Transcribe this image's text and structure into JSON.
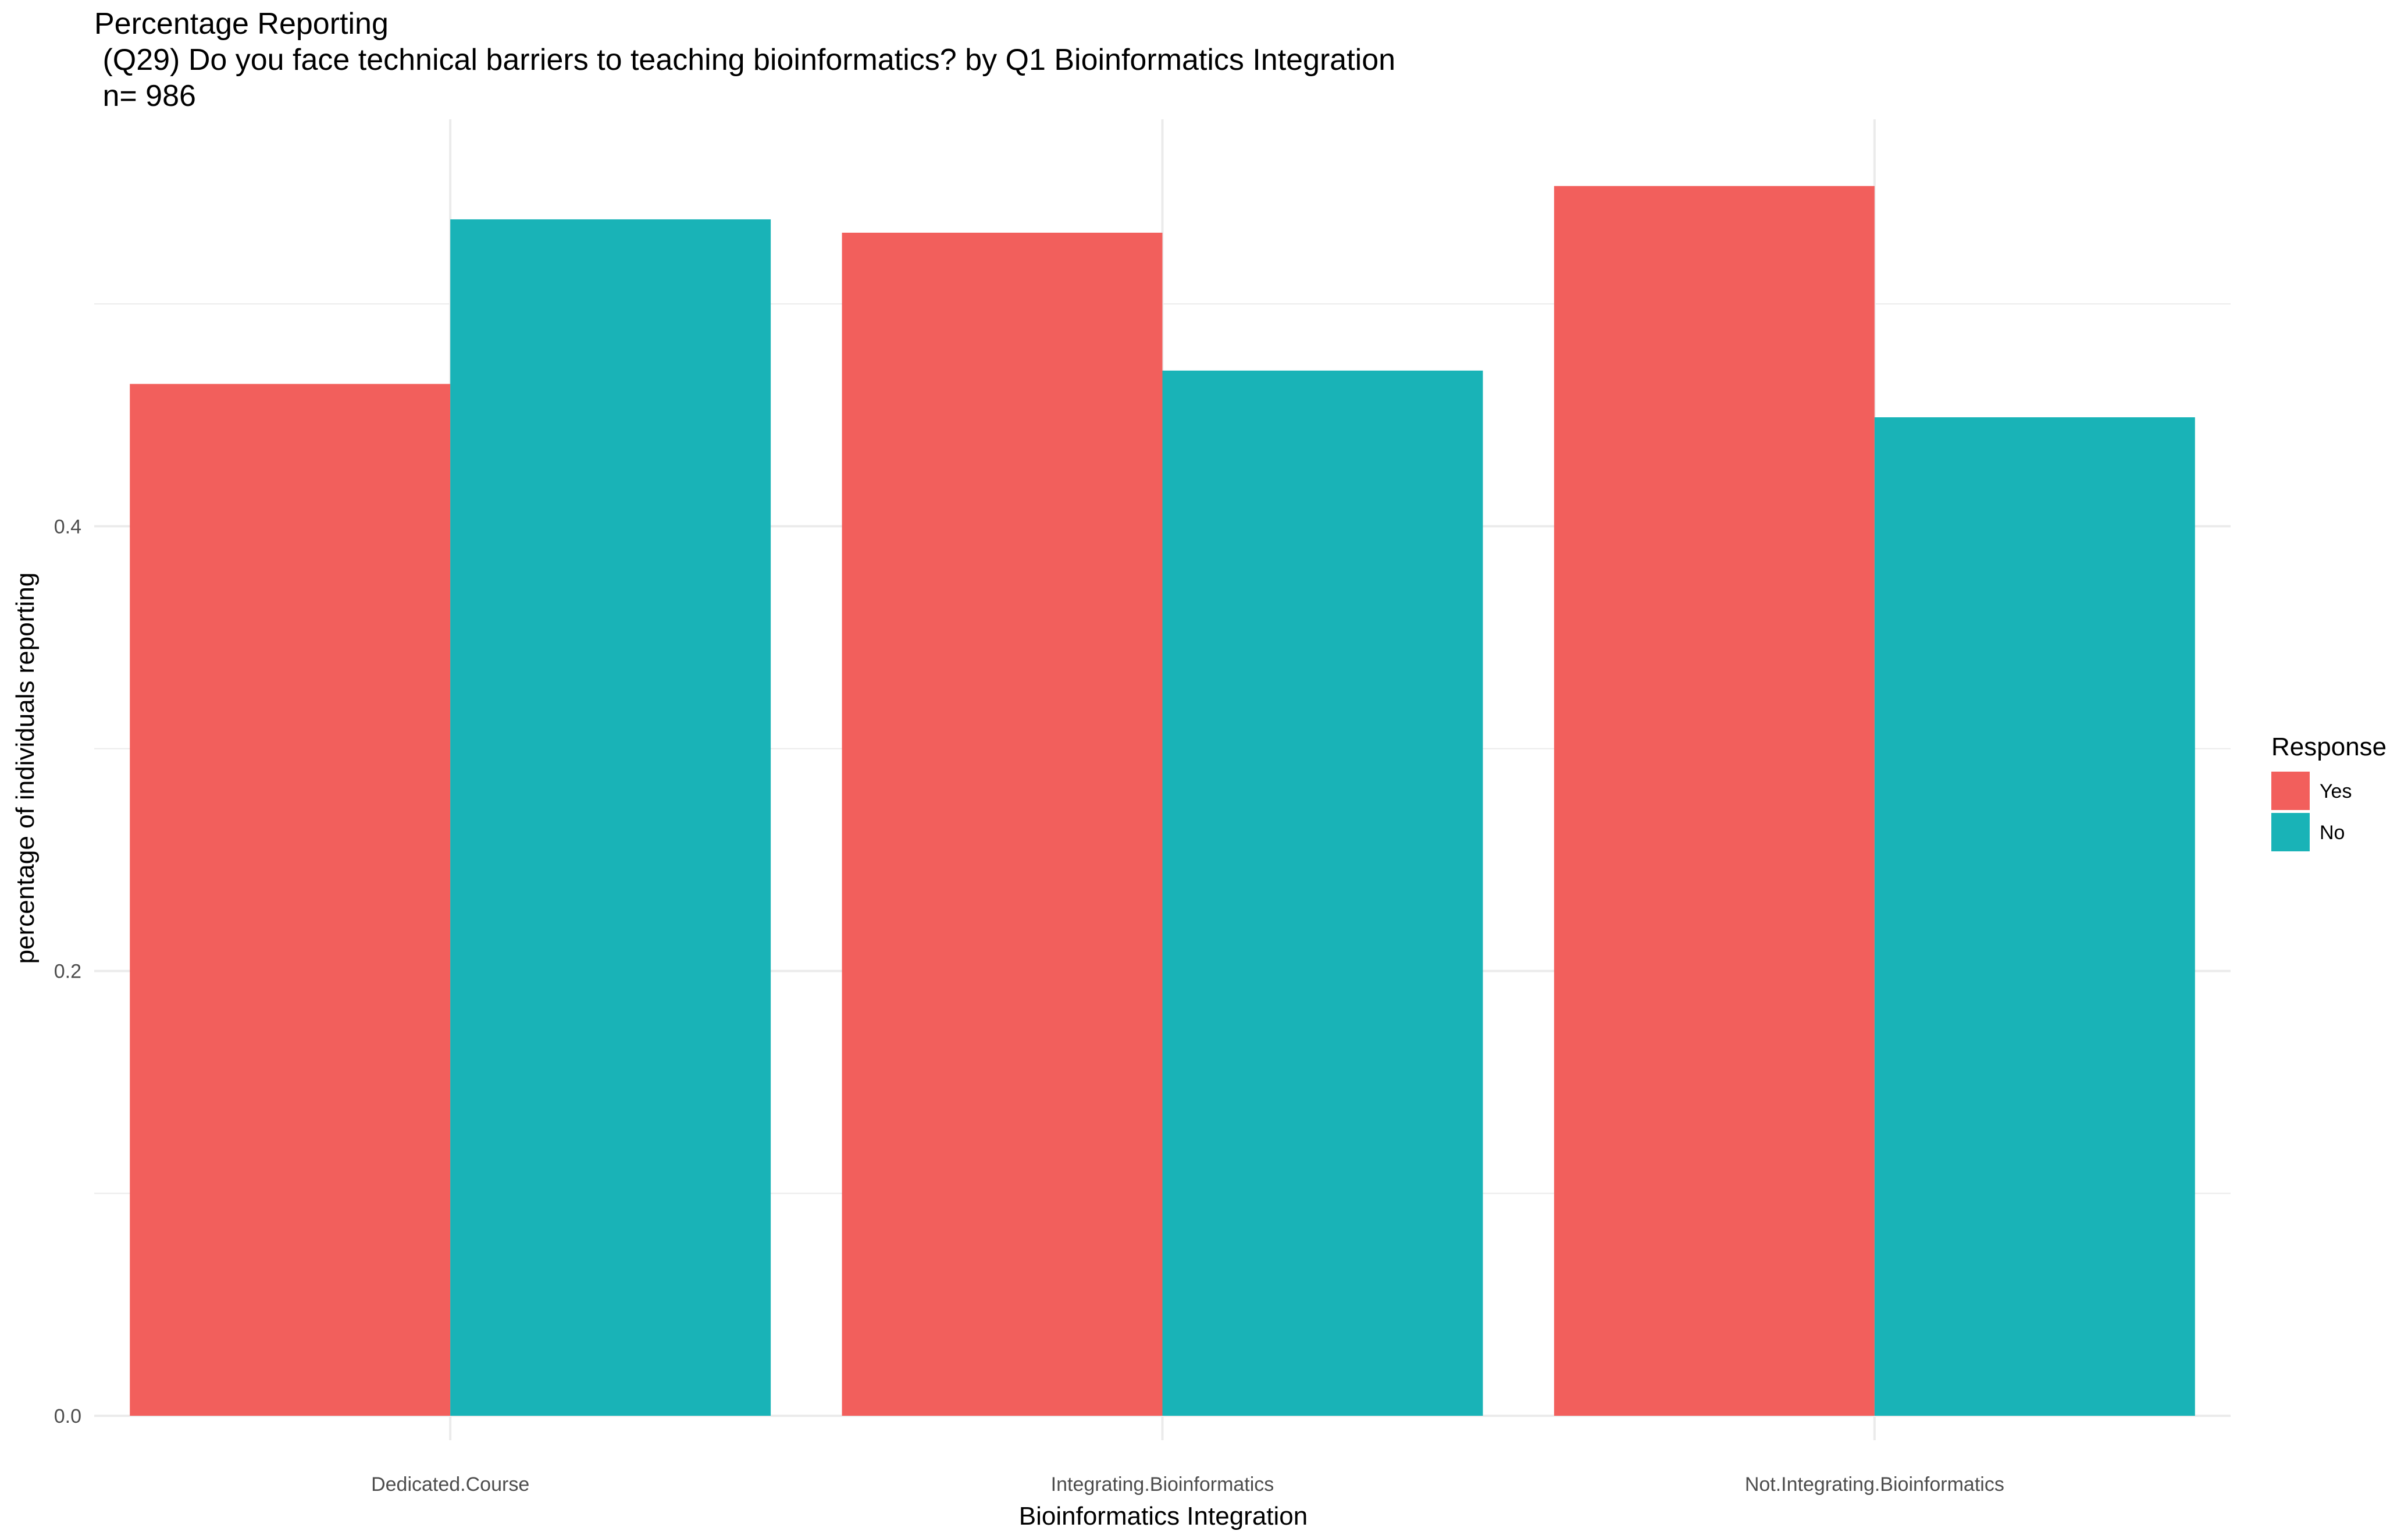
{
  "chart_data": {
    "type": "bar",
    "title": "Percentage Reporting",
    "subtitle": " (Q29) Do you face technical barriers to teaching bioinformatics? by Q1 Bioinformatics Integration",
    "note": " n= 986",
    "xlabel": "Bioinformatics Integration",
    "ylabel": "percentage of individuals reporting",
    "categories": [
      "Dedicated.Course",
      "Integrating.Bioinformatics",
      "Not.Integrating.Bioinformatics"
    ],
    "series": [
      {
        "name": "Yes",
        "color": "#F25F5C",
        "values": [
          0.464,
          0.532,
          0.553
        ]
      },
      {
        "name": "No",
        "color": "#19B3B7",
        "values": [
          0.538,
          0.47,
          0.449
        ]
      }
    ],
    "ylim": [
      -0.011,
      0.583
    ],
    "yticks": [
      0.0,
      0.2,
      0.4
    ],
    "ytick_labels": [
      "0.0",
      "0.2",
      "0.4"
    ],
    "grid": true,
    "legend": {
      "title": "Response",
      "position": "right"
    }
  }
}
